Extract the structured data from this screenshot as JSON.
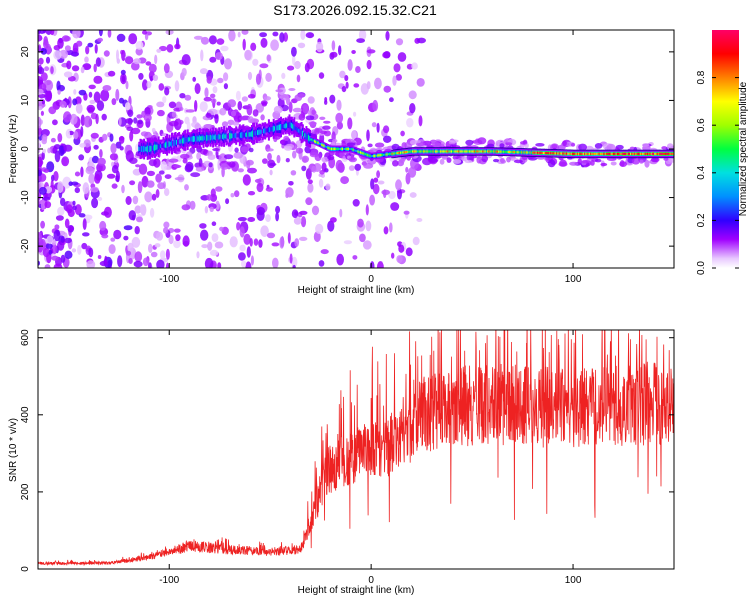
{
  "title": "S173.2026.092.15.32.C21",
  "chart_data": [
    {
      "id": "spectrogram",
      "type": "heatmap",
      "xlabel": "Height of straight line (km)",
      "ylabel": "Frequency (Hz)",
      "xlim": [
        -165,
        150
      ],
      "ylim": [
        -24.5,
        24.5
      ],
      "xticks": [
        -100,
        0,
        100
      ],
      "yticks": [
        -20,
        -10,
        0,
        10,
        20
      ],
      "colorbar": {
        "label": "Normalized spectral amplitude",
        "range": [
          0,
          1
        ],
        "ticks": [
          "0.0",
          "0.2",
          "0.4",
          "0.6",
          "0.8"
        ],
        "tick_values": [
          0,
          0.2,
          0.4,
          0.6,
          0.8
        ],
        "colormap": [
          "#ffffff",
          "#a000ff",
          "#3000ff",
          "#0080ff",
          "#00e0e0",
          "#00ff40",
          "#a0ff00",
          "#ffff00",
          "#ff8000",
          "#ff0000",
          "#ff0060"
        ]
      },
      "ridge": {
        "description_points_km_hz": [
          [
            -110,
            0
          ],
          [
            -90,
            2
          ],
          [
            -60,
            3
          ],
          [
            -40,
            5
          ],
          [
            -30,
            2
          ],
          [
            -20,
            0
          ],
          [
            -10,
            0
          ],
          [
            0,
            -1.5
          ],
          [
            20,
            -0.5
          ],
          [
            60,
            -0.5
          ],
          [
            100,
            -1
          ],
          [
            150,
            -1
          ]
        ]
      }
    },
    {
      "id": "snr",
      "type": "line",
      "xlabel": "Height of straight line (km)",
      "ylabel": "SNR (10 * v/v)",
      "xlim": [
        -165,
        150
      ],
      "ylim": [
        0,
        620
      ],
      "xticks": [
        -100,
        0,
        100
      ],
      "yticks": [
        0,
        200,
        400,
        600
      ],
      "color": "#ee2222",
      "envelope_km_snr": [
        [
          -165,
          15
        ],
        [
          -130,
          15
        ],
        [
          -110,
          30
        ],
        [
          -90,
          60
        ],
        [
          -70,
          50
        ],
        [
          -50,
          45
        ],
        [
          -35,
          50
        ],
        [
          -30,
          120
        ],
        [
          -22,
          250
        ],
        [
          -15,
          280
        ],
        [
          -5,
          300
        ],
        [
          5,
          310
        ],
        [
          15,
          340
        ],
        [
          25,
          400
        ],
        [
          40,
          420
        ],
        [
          60,
          430
        ],
        [
          80,
          420
        ],
        [
          100,
          420
        ],
        [
          120,
          425
        ],
        [
          150,
          430
        ]
      ]
    }
  ]
}
